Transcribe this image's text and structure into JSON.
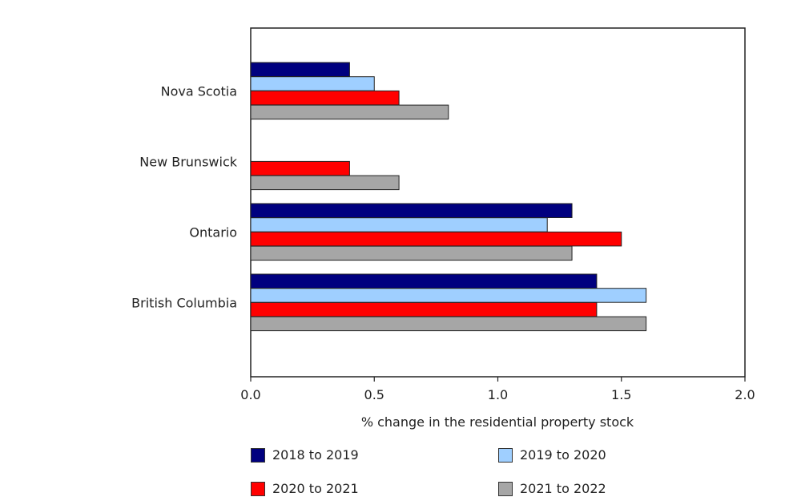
{
  "chart_data": {
    "type": "bar",
    "orientation": "horizontal",
    "categories": [
      "Nova Scotia",
      "New Brunswick",
      "Ontario",
      "British Columbia"
    ],
    "series": [
      {
        "name": "2018 to 2019",
        "color": "#00007f",
        "values": [
          0.4,
          0.0,
          1.3,
          1.4
        ]
      },
      {
        "name": "2019 to 2020",
        "color": "#9fcfff",
        "values": [
          0.5,
          0.0,
          1.2,
          1.6
        ]
      },
      {
        "name": "2020 to 2021",
        "color": "#ff0000",
        "values": [
          0.6,
          0.4,
          1.5,
          1.4
        ]
      },
      {
        "name": "2021 to 2022",
        "color": "#a6a6a6",
        "values": [
          0.8,
          0.6,
          1.3,
          1.6
        ]
      }
    ],
    "xlabel": "% change in the residential property stock",
    "xlim": [
      0,
      2.0
    ],
    "xticks": [
      "0.0",
      "0.5",
      "1.0",
      "1.5",
      "2.0"
    ],
    "grid": false,
    "legend_position": "bottom"
  }
}
